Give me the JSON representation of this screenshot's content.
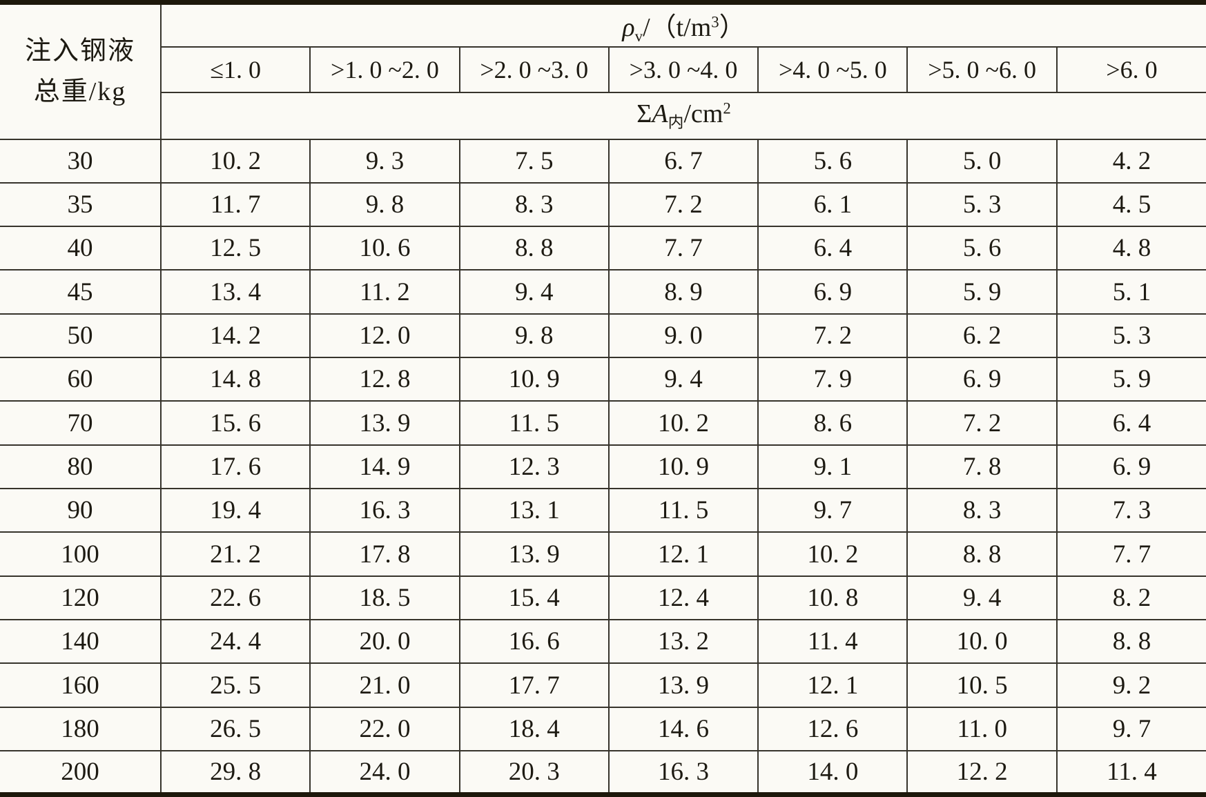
{
  "table": {
    "row_header": {
      "line1": "注入钢液",
      "line2": "总重/kg"
    },
    "density_header": {
      "symbol": "ρ",
      "subscript": "v",
      "mid": "/（t/m",
      "superscript": "3",
      "close": "）"
    },
    "area_header": {
      "sigma": "Σ",
      "symbol": "A",
      "subscript": "内",
      "mid": "/cm",
      "superscript": "2"
    },
    "columns": [
      "≤1. 0",
      ">1. 0 ~2. 0",
      ">2. 0 ~3. 0",
      ">3. 0 ~4. 0",
      ">4. 0 ~5. 0",
      ">5. 0 ~6. 0",
      ">6. 0"
    ],
    "rows": [
      {
        "weight": "30",
        "values": [
          "10. 2",
          "9. 3",
          "7. 5",
          "6. 7",
          "5. 6",
          "5. 0",
          "4. 2"
        ]
      },
      {
        "weight": "35",
        "values": [
          "11. 7",
          "9. 8",
          "8. 3",
          "7. 2",
          "6. 1",
          "5. 3",
          "4. 5"
        ]
      },
      {
        "weight": "40",
        "values": [
          "12. 5",
          "10. 6",
          "8. 8",
          "7. 7",
          "6. 4",
          "5. 6",
          "4. 8"
        ]
      },
      {
        "weight": "45",
        "values": [
          "13. 4",
          "11. 2",
          "9. 4",
          "8. 9",
          "6. 9",
          "5. 9",
          "5. 1"
        ]
      },
      {
        "weight": "50",
        "values": [
          "14. 2",
          "12. 0",
          "9. 8",
          "9. 0",
          "7. 2",
          "6. 2",
          "5. 3"
        ]
      },
      {
        "weight": "60",
        "values": [
          "14. 8",
          "12. 8",
          "10. 9",
          "9. 4",
          "7. 9",
          "6. 9",
          "5. 9"
        ]
      },
      {
        "weight": "70",
        "values": [
          "15. 6",
          "13. 9",
          "11. 5",
          "10. 2",
          "8. 6",
          "7. 2",
          "6. 4"
        ]
      },
      {
        "weight": "80",
        "values": [
          "17. 6",
          "14. 9",
          "12. 3",
          "10. 9",
          "9. 1",
          "7. 8",
          "6. 9"
        ]
      },
      {
        "weight": "90",
        "values": [
          "19. 4",
          "16. 3",
          "13. 1",
          "11. 5",
          "9. 7",
          "8. 3",
          "7. 3"
        ]
      },
      {
        "weight": "100",
        "values": [
          "21. 2",
          "17. 8",
          "13. 9",
          "12. 1",
          "10. 2",
          "8. 8",
          "7. 7"
        ]
      },
      {
        "weight": "120",
        "values": [
          "22. 6",
          "18. 5",
          "15. 4",
          "12. 4",
          "10. 8",
          "9. 4",
          "8. 2"
        ]
      },
      {
        "weight": "140",
        "values": [
          "24. 4",
          "20. 0",
          "16. 6",
          "13. 2",
          "11. 4",
          "10. 0",
          "8. 8"
        ]
      },
      {
        "weight": "160",
        "values": [
          "25. 5",
          "21. 0",
          "17. 7",
          "13. 9",
          "12. 1",
          "10. 5",
          "9. 2"
        ]
      },
      {
        "weight": "180",
        "values": [
          "26. 5",
          "22. 0",
          "18. 4",
          "14. 6",
          "12. 6",
          "11. 0",
          "9. 7"
        ]
      },
      {
        "weight": "200",
        "values": [
          "29. 8",
          "24. 0",
          "20. 3",
          "16. 3",
          "14. 0",
          "12. 2",
          "11. 4"
        ]
      }
    ]
  },
  "colors": {
    "paper": "#fbfaf5",
    "ink": "#1d1a12",
    "grid": "#36332b",
    "heavy_rule": "#1d180b"
  }
}
